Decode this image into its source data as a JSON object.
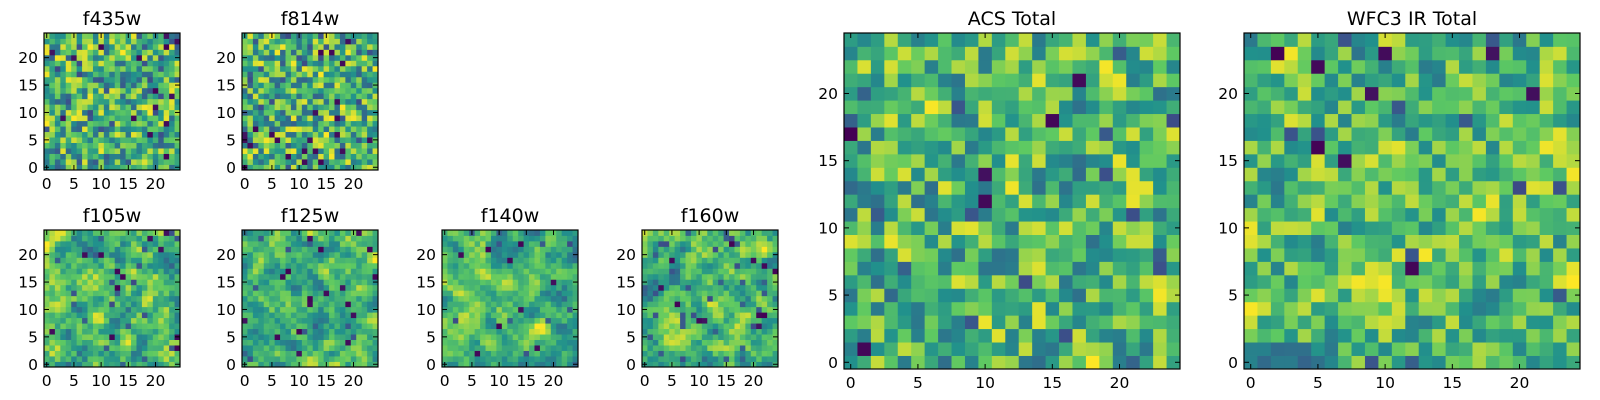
{
  "chart_data": [
    {
      "type": "heatmap",
      "title": "f435w",
      "xticks": [
        "0",
        "5",
        "10",
        "15",
        "20"
      ],
      "yticks": [
        "0",
        "5",
        "10",
        "15",
        "20"
      ],
      "xlim": [
        -0.5,
        24.5
      ],
      "ylim": [
        -0.5,
        24.5
      ],
      "grid": false,
      "legend": "none",
      "seed": 11,
      "smooth": 0.15,
      "dark_density": 0.035,
      "cells_note": "25x25 pixel image, values rendered with viridis colormap"
    },
    {
      "type": "heatmap",
      "title": "f814w",
      "xticks": [
        "0",
        "5",
        "10",
        "15",
        "20"
      ],
      "yticks": [
        "0",
        "5",
        "10",
        "15",
        "20"
      ],
      "xlim": [
        -0.5,
        24.5
      ],
      "ylim": [
        -0.5,
        24.5
      ],
      "grid": false,
      "legend": "none",
      "seed": 23,
      "smooth": 0.15,
      "dark_density": 0.03,
      "cells_note": "25x25 pixel image, values rendered with viridis colormap"
    },
    {
      "type": "heatmap",
      "title": "f105w",
      "xticks": [
        "0",
        "5",
        "10",
        "15",
        "20"
      ],
      "yticks": [
        "0",
        "5",
        "10",
        "15",
        "20"
      ],
      "xlim": [
        -0.5,
        24.5
      ],
      "ylim": [
        -0.5,
        24.5
      ],
      "grid": false,
      "legend": "none",
      "seed": 37,
      "smooth": 0.75,
      "dark_density": 0.02,
      "cells_note": "25x25 pixel image, values rendered with viridis colormap"
    },
    {
      "type": "heatmap",
      "title": "f125w",
      "xticks": [
        "0",
        "5",
        "10",
        "15",
        "20"
      ],
      "yticks": [
        "0",
        "5",
        "10",
        "15",
        "20"
      ],
      "xlim": [
        -0.5,
        24.5
      ],
      "ylim": [
        -0.5,
        24.5
      ],
      "grid": false,
      "legend": "none",
      "seed": 41,
      "smooth": 0.75,
      "dark_density": 0.02,
      "cells_note": "25x25 pixel image, values rendered with viridis colormap"
    },
    {
      "type": "heatmap",
      "title": "f140w",
      "xticks": [
        "0",
        "5",
        "10",
        "15",
        "20"
      ],
      "yticks": [
        "0",
        "5",
        "10",
        "15",
        "20"
      ],
      "xlim": [
        -0.5,
        24.5
      ],
      "ylim": [
        -0.5,
        24.5
      ],
      "grid": false,
      "legend": "none",
      "seed": 53,
      "smooth": 0.8,
      "dark_density": 0.015,
      "cells_note": "25x25 pixel image, values rendered with viridis colormap"
    },
    {
      "type": "heatmap",
      "title": "f160w",
      "xticks": [
        "0",
        "5",
        "10",
        "15",
        "20"
      ],
      "yticks": [
        "0",
        "5",
        "10",
        "15",
        "20"
      ],
      "xlim": [
        -0.5,
        24.5
      ],
      "ylim": [
        -0.5,
        24.5
      ],
      "grid": false,
      "legend": "none",
      "seed": 67,
      "smooth": 0.8,
      "dark_density": 0.02,
      "cells_note": "25x25 pixel image, values rendered with viridis colormap"
    },
    {
      "type": "heatmap",
      "title": "ACS Total",
      "xticks": [
        "0",
        "5",
        "10",
        "15",
        "20"
      ],
      "yticks": [
        "0",
        "5",
        "10",
        "15",
        "20"
      ],
      "xlim": [
        -0.5,
        24.5
      ],
      "ylim": [
        -0.5,
        24.5
      ],
      "grid": false,
      "legend": "none",
      "seed": 79,
      "smooth": 0.25,
      "dark_density": 0.02,
      "cells_note": "25x25 pixel image, values rendered with viridis colormap"
    },
    {
      "type": "heatmap",
      "title": "WFC3 IR Total",
      "xticks": [
        "0",
        "5",
        "10",
        "15",
        "20"
      ],
      "yticks": [
        "0",
        "5",
        "10",
        "15",
        "20"
      ],
      "xlim": [
        -0.5,
        24.5
      ],
      "ylim": [
        -0.5,
        24.5
      ],
      "grid": false,
      "legend": "none",
      "seed": 97,
      "smooth": 0.45,
      "dark_density": 0.015,
      "cells_note": "25x25 pixel image, values rendered with viridis colormap"
    }
  ],
  "colors": {
    "colormap": "viridis",
    "viridis_stops": [
      "#440154",
      "#3b528b",
      "#21918c",
      "#5ec962",
      "#fde725"
    ]
  }
}
